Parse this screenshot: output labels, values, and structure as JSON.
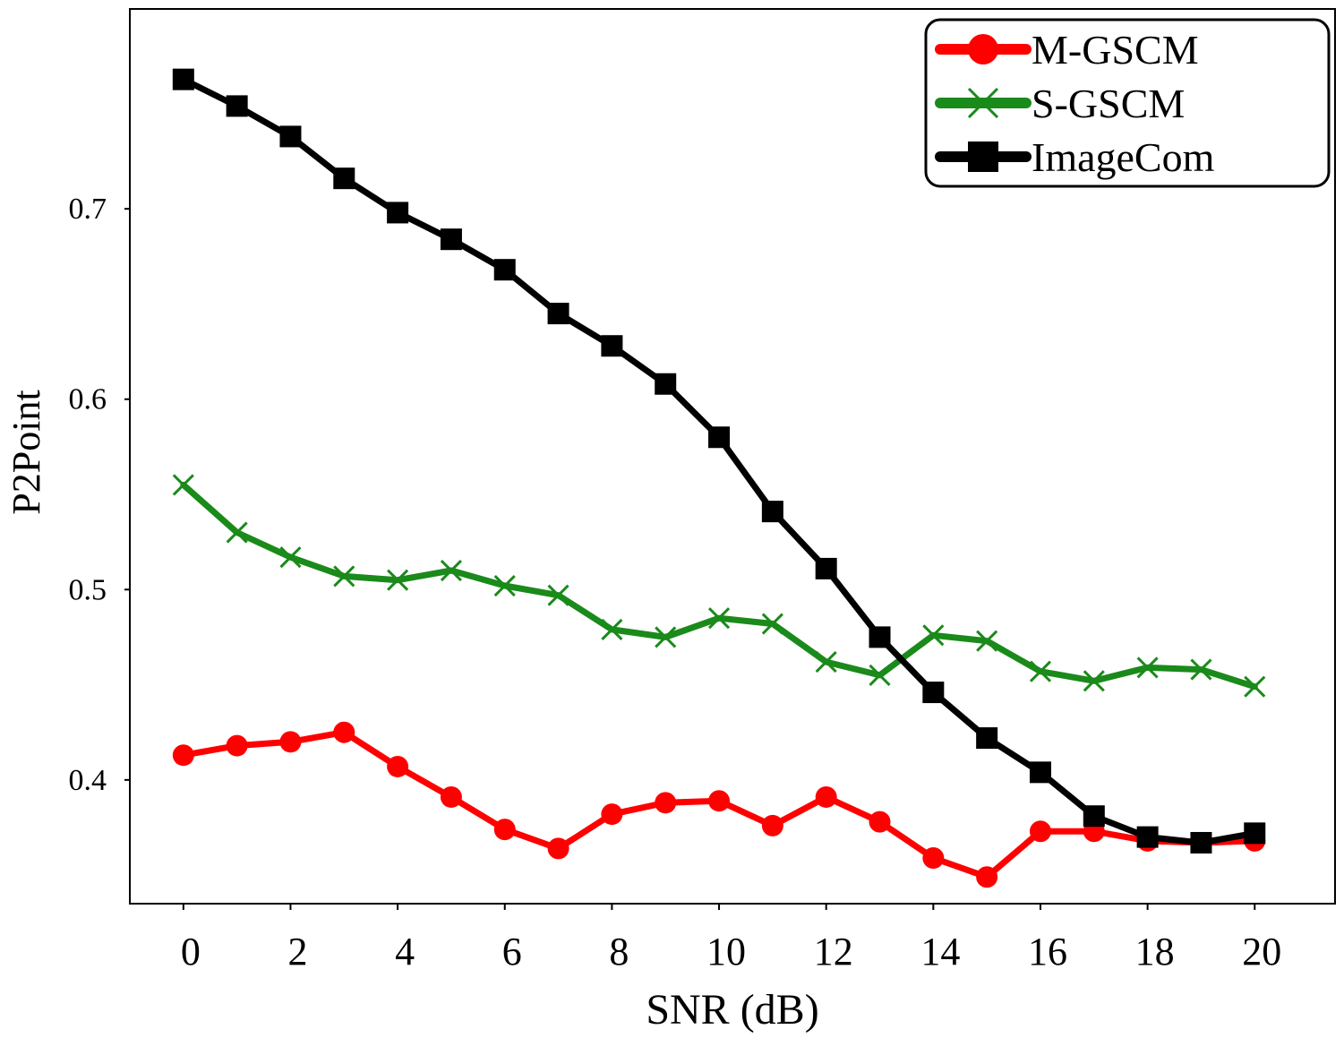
{
  "chart_data": {
    "type": "line",
    "title": "",
    "xlabel": "SNR (dB)",
    "ylabel": "P2Point",
    "xlim": [
      -1,
      21.5
    ],
    "ylim": [
      0.335,
      0.805
    ],
    "xticks": [
      0,
      2,
      4,
      6,
      8,
      10,
      12,
      14,
      16,
      18,
      20
    ],
    "xtick_labels": [
      "0",
      "2",
      "4",
      "6",
      "8",
      "10",
      "12",
      "14",
      "16",
      "18",
      "20"
    ],
    "yticks": [
      0.4,
      0.5,
      0.6,
      0.7
    ],
    "ytick_labels": [
      "0.4",
      "0.5",
      "0.6",
      "0.7"
    ],
    "grid": false,
    "legend_position": "top-right",
    "x": [
      0,
      1,
      2,
      3,
      4,
      5,
      6,
      7,
      8,
      9,
      10,
      11,
      12,
      13,
      14,
      15,
      16,
      17,
      18,
      19,
      20
    ],
    "series": [
      {
        "name": "M-GSCM",
        "color": "#ff0000",
        "marker": "circle",
        "values": [
          0.413,
          0.418,
          0.42,
          0.425,
          0.407,
          0.391,
          0.374,
          0.364,
          0.382,
          0.388,
          0.389,
          0.376,
          0.391,
          0.378,
          0.359,
          0.349,
          0.373,
          0.373,
          0.368,
          0.367,
          0.368
        ]
      },
      {
        "name": "S-GSCM",
        "color": "#1a8a1a",
        "marker": "x",
        "values": [
          0.555,
          0.53,
          0.517,
          0.507,
          0.505,
          0.51,
          0.502,
          0.497,
          0.479,
          0.475,
          0.485,
          0.482,
          0.462,
          0.455,
          0.476,
          0.473,
          0.457,
          0.452,
          0.459,
          0.458,
          0.449
        ]
      },
      {
        "name": "ImageCom",
        "color": "#000000",
        "marker": "square",
        "values": [
          0.768,
          0.754,
          0.738,
          0.716,
          0.698,
          0.684,
          0.668,
          0.645,
          0.628,
          0.608,
          0.58,
          0.541,
          0.511,
          0.475,
          0.446,
          0.422,
          0.404,
          0.381,
          0.37,
          0.367,
          0.372
        ]
      }
    ]
  }
}
